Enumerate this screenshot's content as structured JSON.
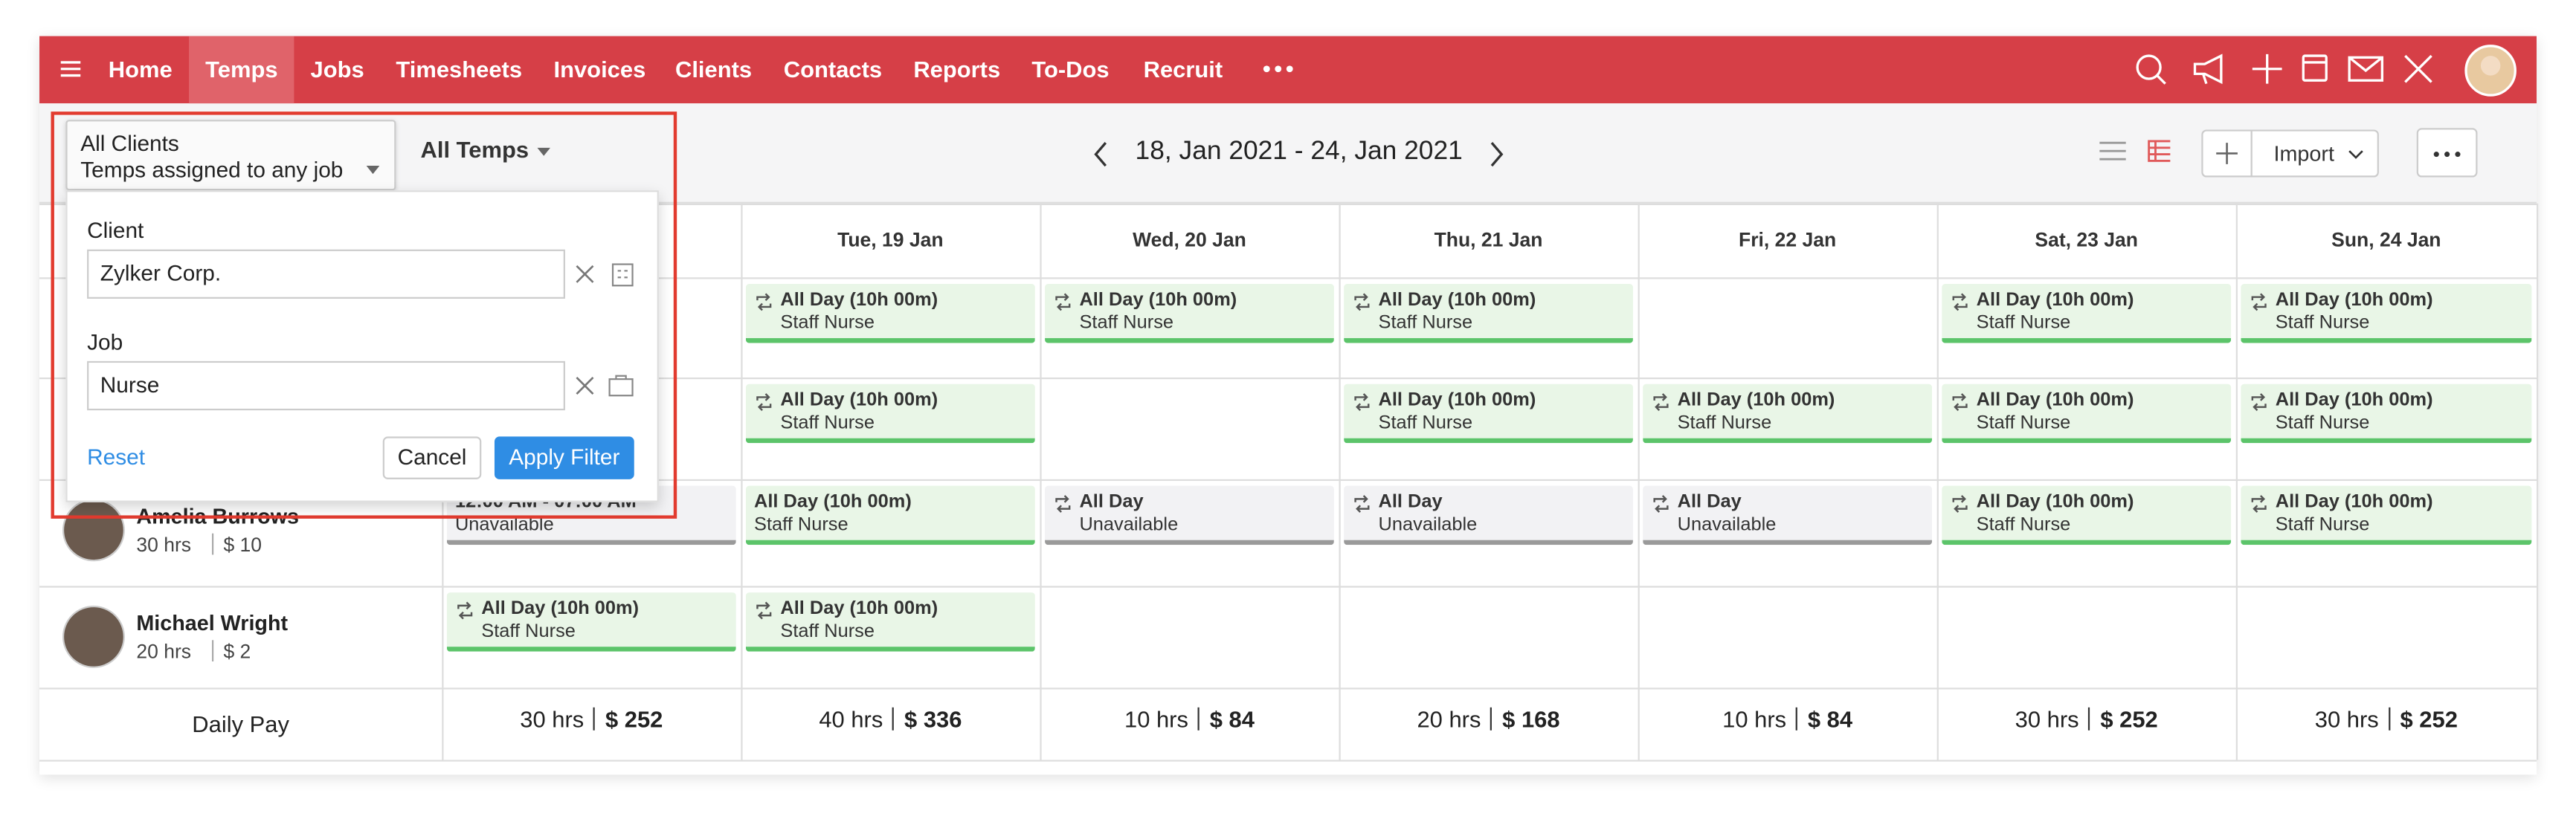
{
  "nav": {
    "items": [
      "Home",
      "Temps",
      "Jobs",
      "Timesheets",
      "Invoices",
      "Clients",
      "Contacts",
      "Reports",
      "To-Dos",
      "Recruit"
    ],
    "active": 1
  },
  "toolbar": {
    "client_filter": "All Clients",
    "job_filter": "Temps assigned to any job",
    "temp_filter": "All Temps",
    "date_range": "18, Jan 2021 - 24, Jan 2021",
    "import": "Import"
  },
  "filter_popup": {
    "client_label": "Client",
    "client_value": "Zylker Corp.",
    "job_label": "Job",
    "job_value": "Nurse",
    "reset": "Reset",
    "cancel": "Cancel",
    "apply": "Apply Filter"
  },
  "schedule": {
    "days": [
      null,
      "Tue, 19 Jan",
      "Wed, 20 Jan",
      "Thu, 21 Jan",
      "Fri, 22 Jan",
      "Sat, 23 Jan",
      "Sun, 24 Jan"
    ],
    "rows": [
      {
        "temp": null,
        "cells": [
          null,
          {
            "type": "shift",
            "repeat": true,
            "title": "All Day (10h 00m)",
            "sub": "Staff Nurse"
          },
          {
            "type": "shift",
            "repeat": true,
            "title": "All Day (10h 00m)",
            "sub": "Staff Nurse"
          },
          {
            "type": "shift",
            "repeat": true,
            "title": "All Day (10h 00m)",
            "sub": "Staff Nurse"
          },
          null,
          {
            "type": "shift",
            "repeat": true,
            "title": "All Day (10h 00m)",
            "sub": "Staff Nurse"
          },
          {
            "type": "shift",
            "repeat": true,
            "title": "All Day (10h 00m)",
            "sub": "Staff Nurse"
          }
        ]
      },
      {
        "temp": null,
        "cells": [
          null,
          {
            "type": "shift",
            "repeat": true,
            "title": "All Day (10h 00m)",
            "sub": "Staff Nurse"
          },
          null,
          {
            "type": "shift",
            "repeat": true,
            "title": "All Day (10h 00m)",
            "sub": "Staff Nurse"
          },
          {
            "type": "shift",
            "repeat": true,
            "title": "All Day (10h 00m)",
            "sub": "Staff Nurse"
          },
          {
            "type": "shift",
            "repeat": true,
            "title": "All Day (10h 00m)",
            "sub": "Staff Nurse"
          },
          {
            "type": "shift",
            "repeat": true,
            "title": "All Day (10h 00m)",
            "sub": "Staff Nurse"
          }
        ]
      },
      {
        "temp": {
          "name": "Amelia Burrows",
          "hours": "30 hrs",
          "rate": "$ 10"
        },
        "cells": [
          {
            "type": "unavailable",
            "repeat": false,
            "title": "12:00 AM - 07:00 AM",
            "sub": "Unavailable"
          },
          {
            "type": "shift",
            "repeat": false,
            "title": "All Day (10h 00m)",
            "sub": "Staff Nurse"
          },
          {
            "type": "unavailable",
            "repeat": true,
            "title": "All Day",
            "sub": "Unavailable"
          },
          {
            "type": "unavailable",
            "repeat": true,
            "title": "All Day",
            "sub": "Unavailable"
          },
          {
            "type": "unavailable",
            "repeat": true,
            "title": "All Day",
            "sub": "Unavailable"
          },
          {
            "type": "shift",
            "repeat": true,
            "title": "All Day (10h 00m)",
            "sub": "Staff Nurse"
          },
          {
            "type": "shift",
            "repeat": true,
            "title": "All Day (10h 00m)",
            "sub": "Staff Nurse"
          }
        ]
      },
      {
        "temp": {
          "name": "Michael Wright",
          "hours": "20 hrs",
          "rate": "$ 2"
        },
        "cells": [
          {
            "type": "shift",
            "repeat": true,
            "title": "All Day (10h 00m)",
            "sub": "Staff Nurse"
          },
          {
            "type": "shift",
            "repeat": true,
            "title": "All Day (10h 00m)",
            "sub": "Staff Nurse"
          },
          null,
          null,
          null,
          null,
          null
        ]
      }
    ],
    "daily_pay": {
      "label": "Daily Pay",
      "totals": [
        {
          "hours": "30 hrs",
          "pay": "$ 252"
        },
        {
          "hours": "40 hrs",
          "pay": "$ 336"
        },
        {
          "hours": "10 hrs",
          "pay": "$ 84"
        },
        {
          "hours": "20 hrs",
          "pay": "$ 168"
        },
        {
          "hours": "10 hrs",
          "pay": "$ 84"
        },
        {
          "hours": "30 hrs",
          "pay": "$ 252"
        },
        {
          "hours": "30 hrs",
          "pay": "$ 252"
        }
      ]
    }
  }
}
